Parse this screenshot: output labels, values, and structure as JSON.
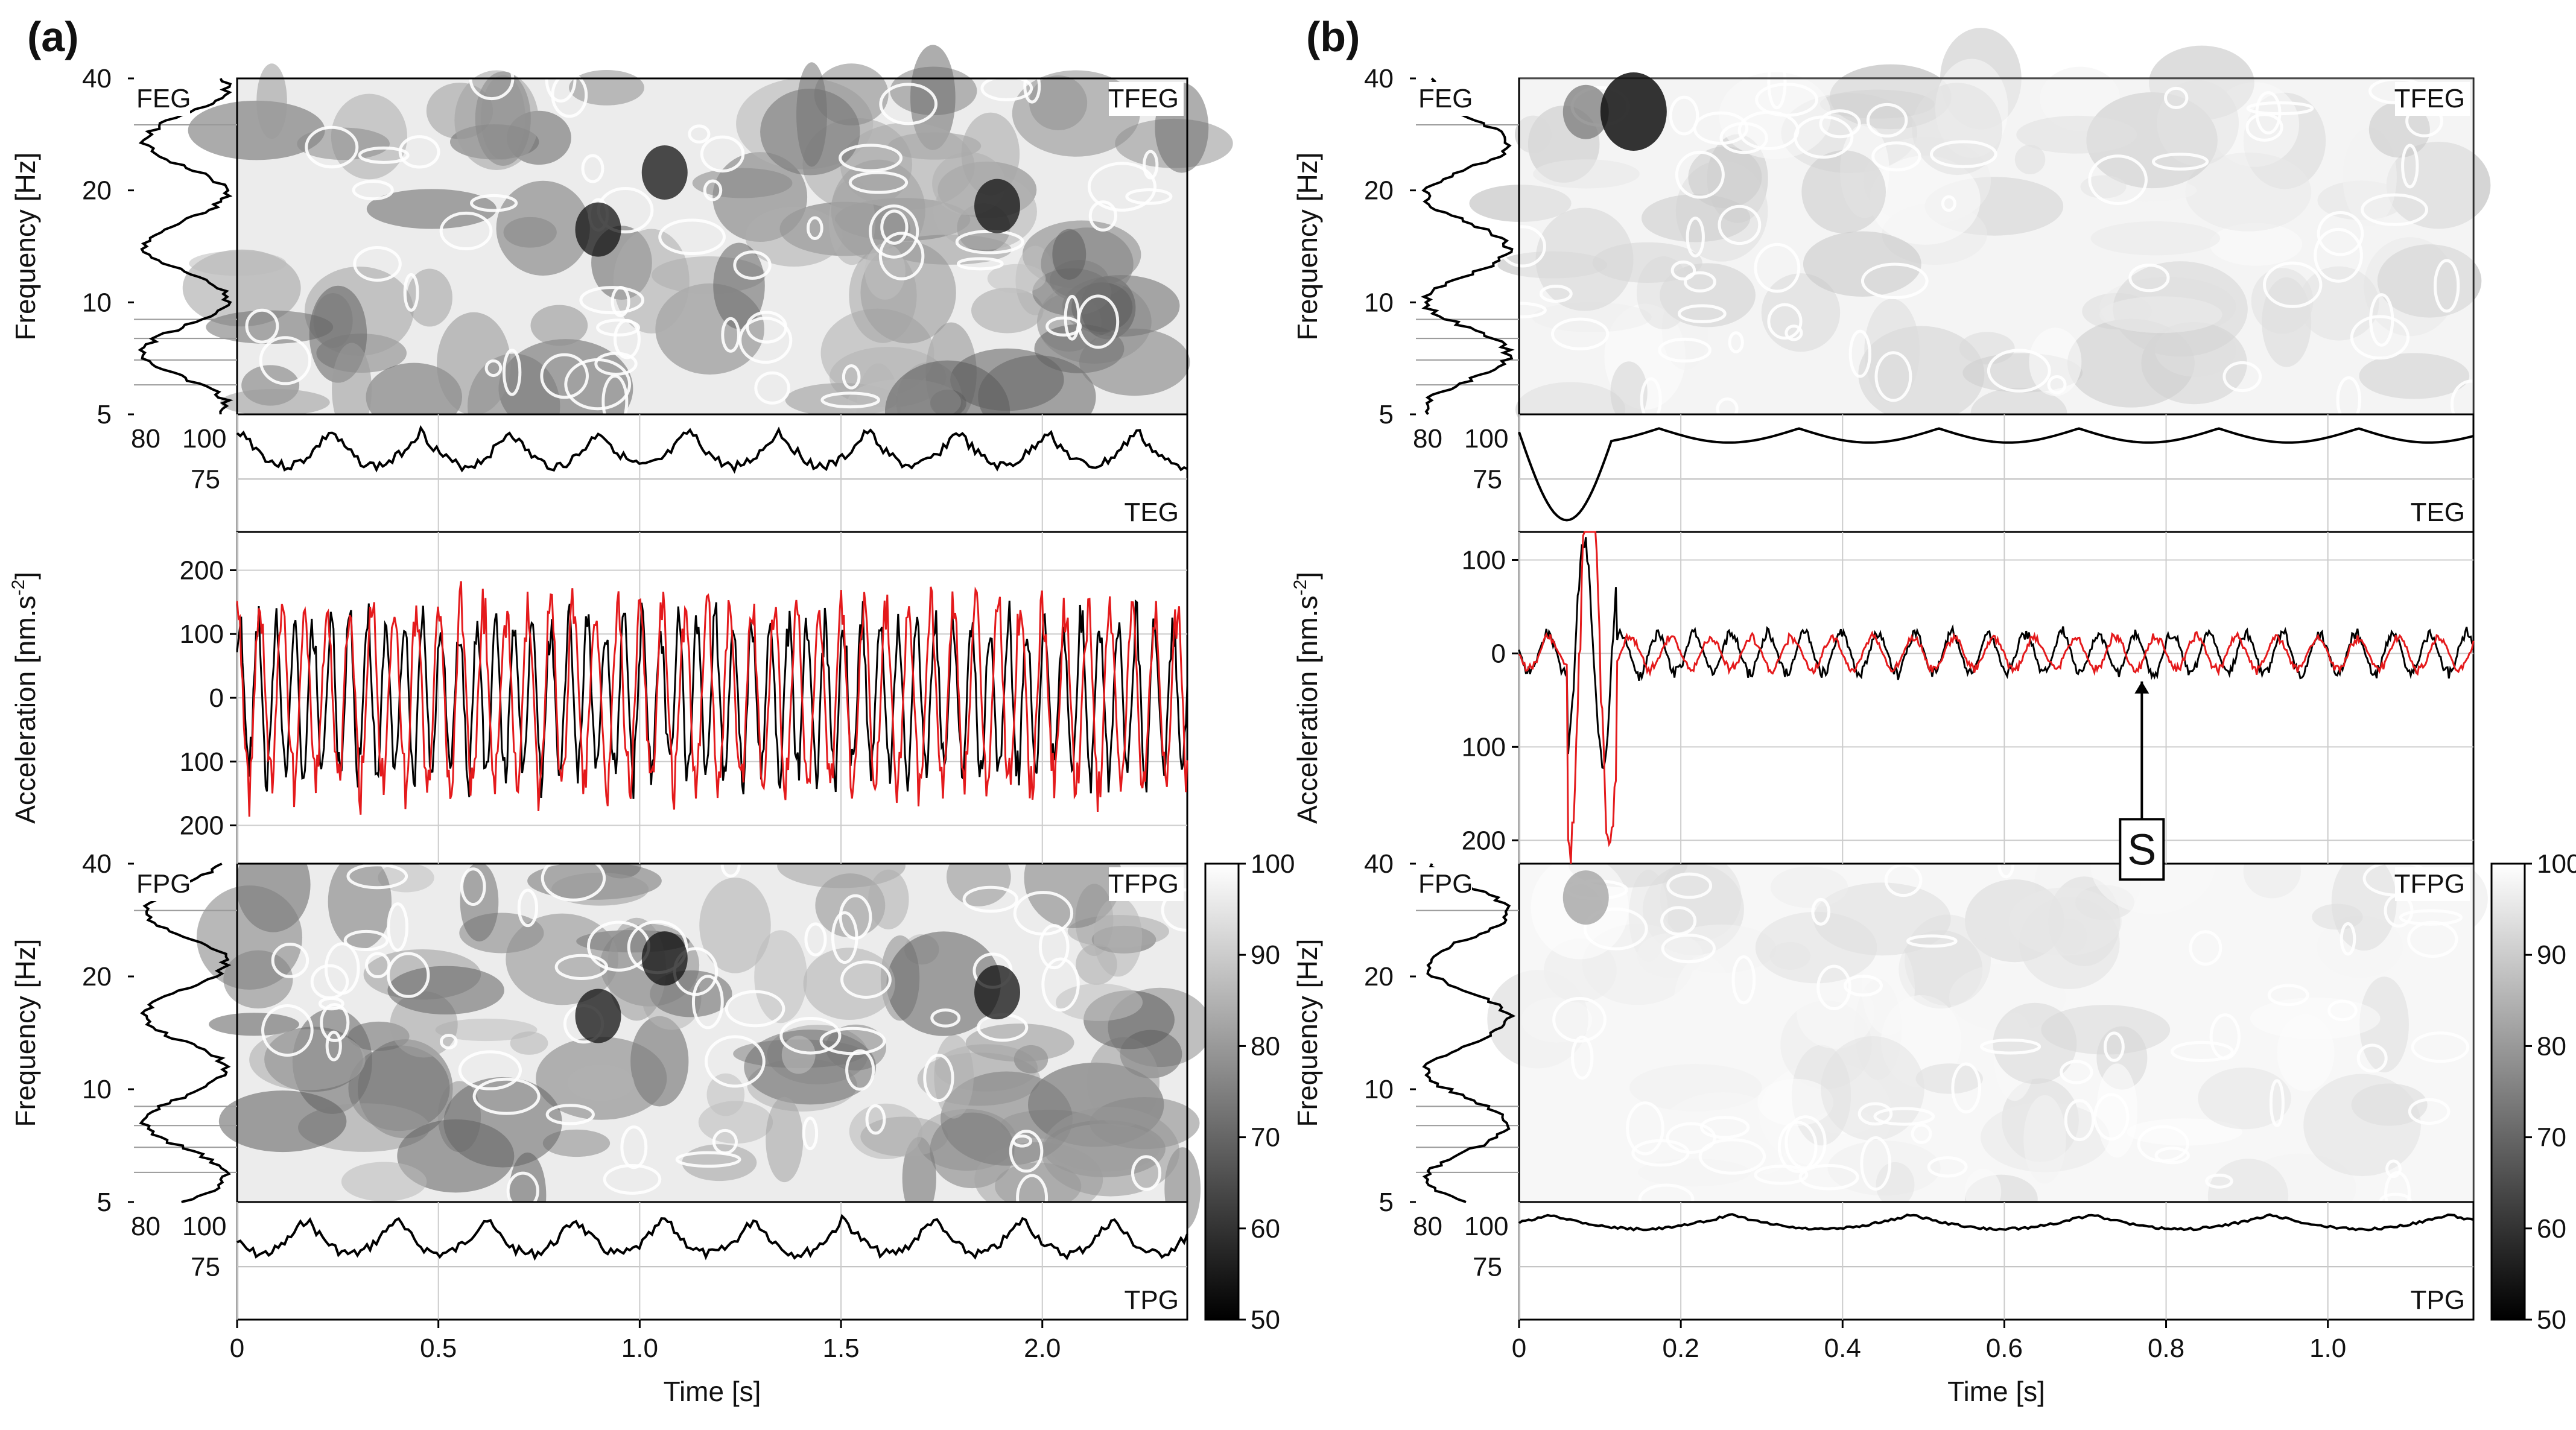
{
  "figure_labels": {
    "a": "(a)",
    "b": "(b)"
  },
  "axis_labels": {
    "frequency": "Frequency [Hz]",
    "acceleration": "Acceleration [nm.s",
    "acceleration_sup": "-2",
    "acceleration_end": "]",
    "time": "Time [s]"
  },
  "corner_labels": {
    "feg": "FEG",
    "tfeg": "TFEG",
    "teg": "TEG",
    "fpg": "FPG",
    "tfpg": "TFPG",
    "tpg": "TPG"
  },
  "s_label": "S",
  "chart_data": [
    {
      "id": "a",
      "type": "composite",
      "title": "(a)",
      "xlabel": "Time [s]",
      "xlim": [
        0,
        2.36
      ],
      "xticks": [
        0,
        0.5,
        1.0,
        1.5,
        2.0
      ],
      "xtick_labels": [
        "0",
        "0.5",
        "1.0",
        "1.5",
        "2.0"
      ],
      "freq_ticks": [
        5,
        10,
        20,
        40
      ],
      "freq_tick_labels": [
        "5",
        "10",
        "20",
        "40"
      ],
      "freq_side_ticks": [
        "80",
        "100"
      ],
      "envelope_ticks": [
        "75",
        "100"
      ],
      "accel_ticks": [
        "200",
        "100",
        "0",
        "100",
        "200"
      ],
      "accel_tick_values": [
        -200,
        -100,
        0,
        100,
        200
      ],
      "accel_ylim": [
        -260,
        260
      ],
      "series": [
        {
          "name": "black trace",
          "color": "#000000",
          "seed": 7,
          "amplitude": 140,
          "freq": 22
        },
        {
          "name": "red trace",
          "color": "#e41a1c",
          "seed": 13,
          "amplitude": 160,
          "freq": 18
        }
      ],
      "colorbar": {
        "range": [
          50,
          100
        ],
        "ticks": [
          "100",
          "90",
          "80",
          "70",
          "60",
          "50"
        ]
      }
    },
    {
      "id": "b",
      "type": "composite",
      "title": "(b)",
      "xlabel": "Time [s]",
      "xlim": [
        0,
        1.18
      ],
      "xticks": [
        0,
        0.2,
        0.4,
        0.6,
        0.8,
        1.0
      ],
      "xtick_labels": [
        "0",
        "0.2",
        "0.4",
        "0.6",
        "0.8",
        "1.0"
      ],
      "freq_ticks": [
        5,
        10,
        20,
        40
      ],
      "freq_tick_labels": [
        "5",
        "10",
        "20",
        "40"
      ],
      "freq_side_ticks": [
        "80",
        "100"
      ],
      "envelope_ticks": [
        "75",
        "100"
      ],
      "accel_ticks": [
        "100",
        "0",
        "100",
        "200"
      ],
      "accel_tick_values": [
        100,
        0,
        -100,
        -200
      ],
      "accel_ylim": [
        -225,
        130
      ],
      "series": [
        {
          "name": "black trace",
          "color": "#000000",
          "seed": 3,
          "amplitude": 25,
          "freq": 22
        },
        {
          "name": "red trace",
          "color": "#e41a1c",
          "seed": 21,
          "amplitude": 20,
          "freq": 20
        }
      ],
      "annotation": {
        "text": "S",
        "time": 0.77
      },
      "colorbar": {
        "range": [
          50,
          100
        ],
        "ticks": [
          "100",
          "90",
          "80",
          "70",
          "60",
          "50"
        ]
      }
    }
  ]
}
